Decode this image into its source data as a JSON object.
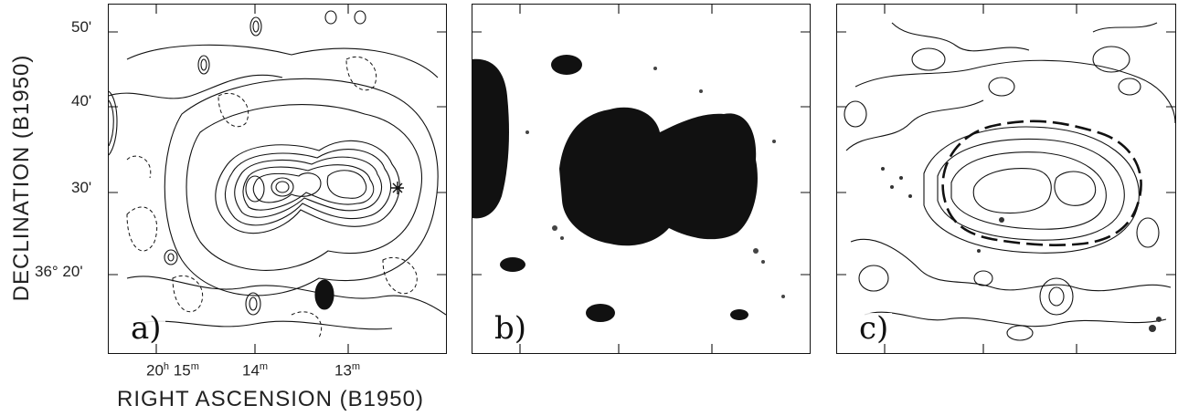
{
  "figure": {
    "ylabel": "DECLINATION (B1950)",
    "xlabel": "RIGHT ASCENSION (B1950)",
    "yticks": [
      "50'",
      "40'",
      "30'",
      "36° 20'"
    ],
    "xticks": [
      {
        "main": "20",
        "sup": "h",
        "main2": " 15",
        "sup2": "m"
      },
      {
        "main": "14",
        "sup": "m"
      },
      {
        "main": "13",
        "sup": "m"
      }
    ],
    "panels": [
      {
        "label": "a)"
      },
      {
        "label": "b)"
      },
      {
        "label": "c)"
      }
    ]
  }
}
